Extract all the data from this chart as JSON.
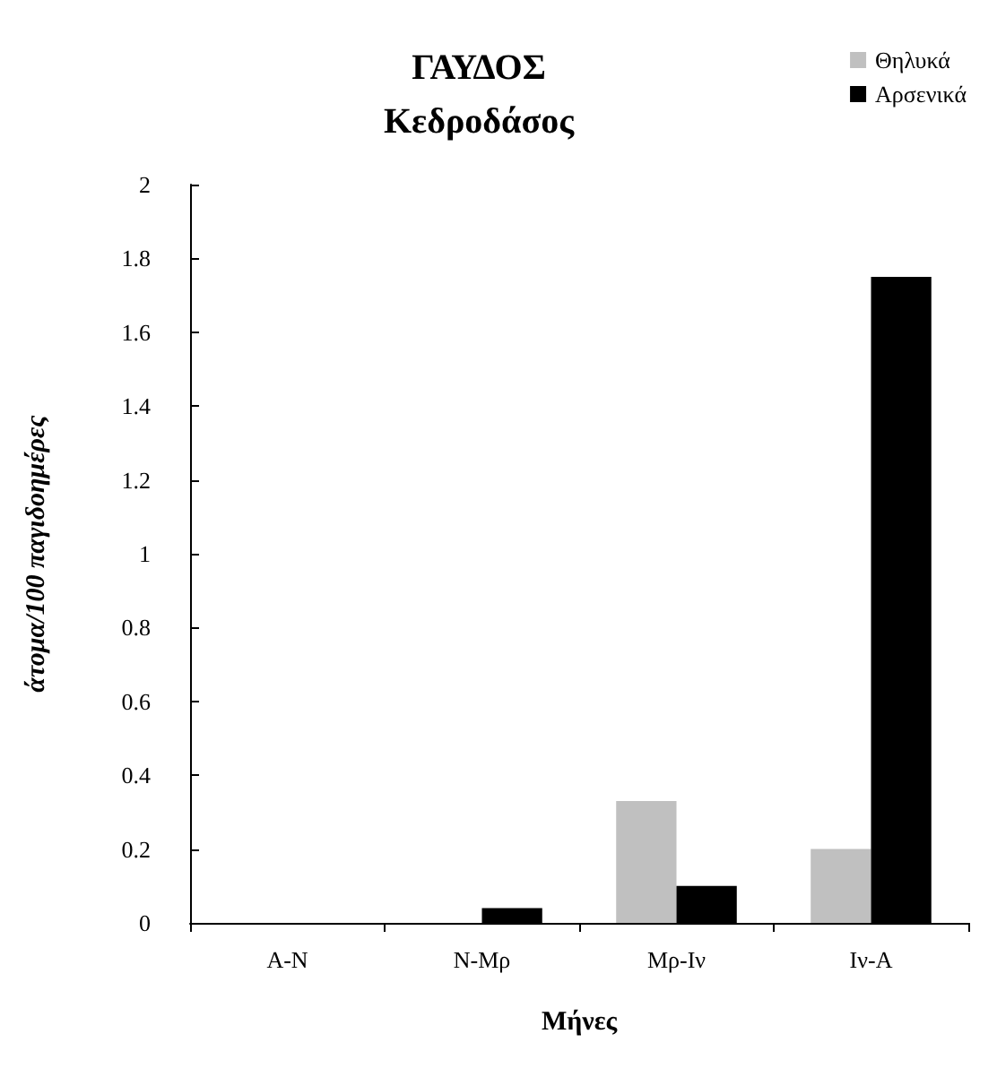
{
  "chart_data": {
    "type": "bar",
    "title": "ΓΑΥΔΟΣ\nΚεδροδάσος",
    "xlabel": "Μήνες",
    "ylabel": "άτομα/100 παγιδοημέρες",
    "categories": [
      "A-N",
      "N-Mρ",
      "Mρ-Iν",
      "Iν-A"
    ],
    "series": [
      {
        "name": "Θηλυκά",
        "color": "#c0c0c0",
        "values": [
          0,
          0,
          0.33,
          0.2
        ]
      },
      {
        "name": "Αρσενικά",
        "color": "#000000",
        "values": [
          0,
          0.04,
          0.1,
          1.75
        ]
      }
    ],
    "ylim": [
      0,
      2
    ],
    "yticks": [
      0,
      0.2,
      0.4,
      0.6,
      0.8,
      1,
      1.2,
      1.4,
      1.6,
      1.8,
      2
    ],
    "grid": false,
    "legend": "top right"
  }
}
